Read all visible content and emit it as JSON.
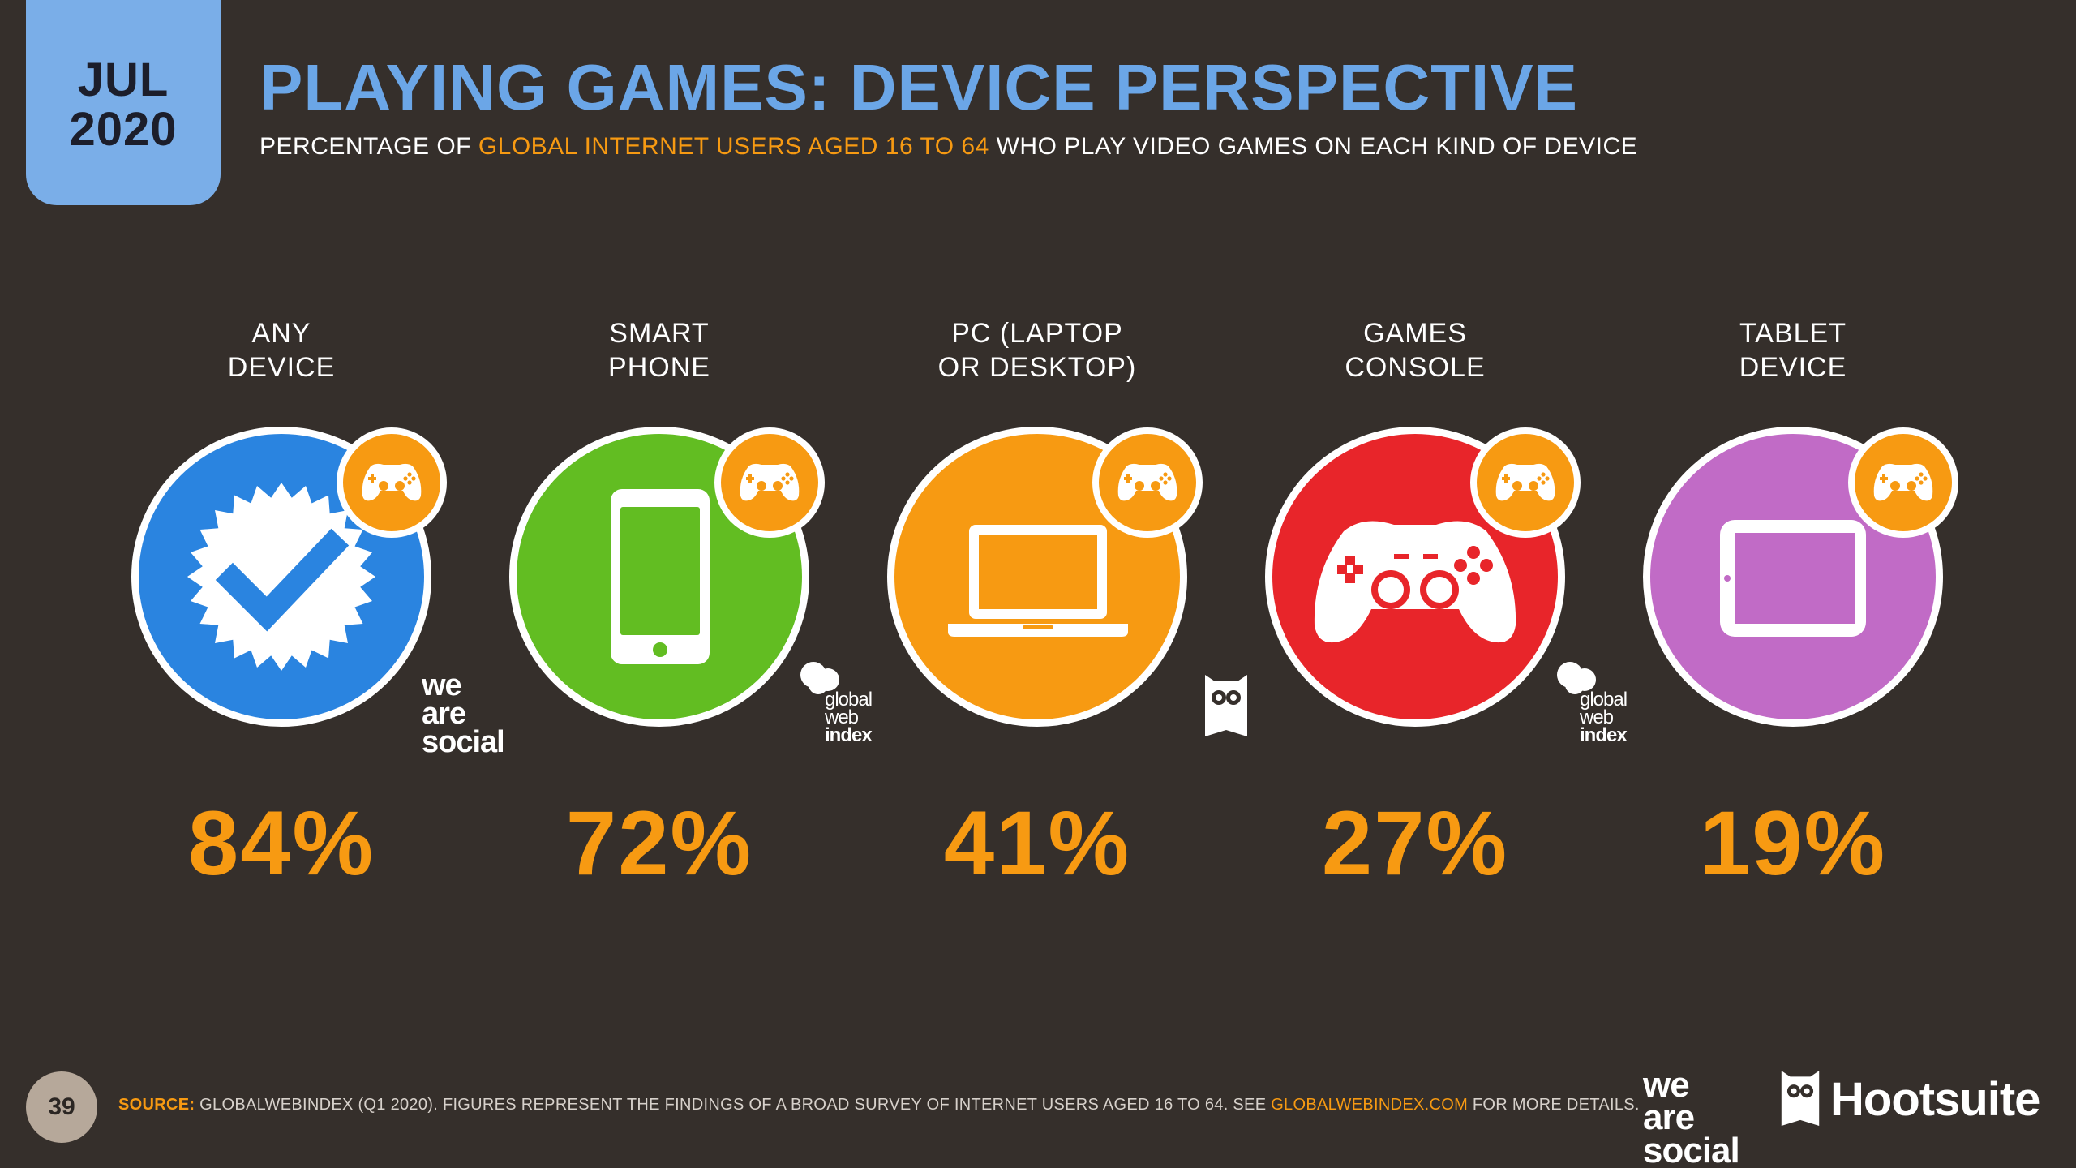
{
  "badge": {
    "month": "JUL",
    "year": "2020"
  },
  "header": {
    "title": "PLAYING GAMES: DEVICE PERSPECTIVE",
    "subtitle_pre": "PERCENTAGE OF ",
    "subtitle_highlight": "GLOBAL INTERNET USERS AGED 16 TO 64",
    "subtitle_post": " WHO PLAY VIDEO GAMES ON EACH KIND OF DEVICE"
  },
  "chart_data": {
    "type": "table",
    "categories": [
      "ANY\nDEVICE",
      "SMART\nPHONE",
      "PC (LAPTOP\nOR DESKTOP)",
      "GAMES\nCONSOLE",
      "TABLET\nDEVICE"
    ],
    "values": [
      84,
      72,
      41,
      27,
      19
    ],
    "value_labels": [
      "84%",
      "72%",
      "41%",
      "27%",
      "19%"
    ],
    "colors": [
      "#2a84e0",
      "#62bd22",
      "#f79a12",
      "#e8252a",
      "#c16bc6"
    ],
    "icons": [
      "verified-check-icon",
      "smartphone-icon",
      "laptop-icon",
      "gamepad-icon",
      "tablet-icon"
    ]
  },
  "logos": {
    "we_are_social": [
      "we",
      "are",
      "social"
    ],
    "gwi": [
      "global",
      "web",
      "index"
    ],
    "hootsuite": "Hootsuite"
  },
  "footer": {
    "page": "39",
    "source_label": "SOURCE:",
    "source_text": " GLOBALWEBINDEX (Q1 2020). FIGURES REPRESENT THE FINDINGS OF A BROAD SURVEY OF INTERNET USERS AGED 16 TO 64. SEE ",
    "source_url": "GLOBALWEBINDEX.COM",
    "source_tail": " FOR MORE DETAILS."
  }
}
